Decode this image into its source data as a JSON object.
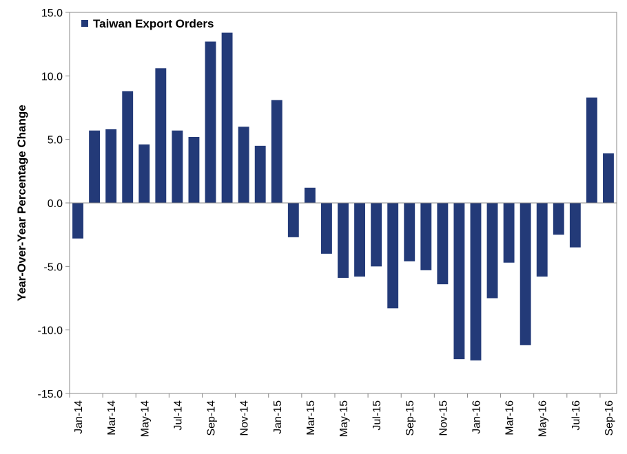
{
  "chart_data": {
    "type": "bar",
    "title": "",
    "xlabel": "",
    "ylabel": "Year-Over-Year Percentage Change",
    "ylim": [
      -15,
      15
    ],
    "yticks": [
      "15.0",
      "10.0",
      "5.0",
      "0.0",
      "-5.0",
      "-10.0",
      "-15.0"
    ],
    "ytick_values": [
      15,
      10,
      5,
      0,
      -5,
      -10,
      -15
    ],
    "grid": false,
    "legend_position": "top-left",
    "bar_color": "#233A78",
    "categories": [
      "Jan-14",
      "Feb-14",
      "Mar-14",
      "Apr-14",
      "May-14",
      "Jun-14",
      "Jul-14",
      "Aug-14",
      "Sep-14",
      "Oct-14",
      "Nov-14",
      "Dec-14",
      "Jan-15",
      "Feb-15",
      "Mar-15",
      "Apr-15",
      "May-15",
      "Jun-15",
      "Jul-15",
      "Aug-15",
      "Sep-15",
      "Oct-15",
      "Nov-15",
      "Dec-15",
      "Jan-16",
      "Feb-16",
      "Mar-16",
      "Apr-16",
      "May-16",
      "Jun-16",
      "Jul-16",
      "Aug-16",
      "Sep-16"
    ],
    "xtick_labels": [
      "Jan-14",
      "Mar-14",
      "May-14",
      "Jul-14",
      "Sep-14",
      "Nov-14",
      "Jan-15",
      "Mar-15",
      "May-15",
      "Jul-15",
      "Sep-15",
      "Nov-15",
      "Jan-16",
      "Mar-16",
      "May-16",
      "Jul-16",
      "Sep-16"
    ],
    "series": [
      {
        "name": "Taiwan Export Orders",
        "values": [
          -2.8,
          5.7,
          5.8,
          8.8,
          4.6,
          10.6,
          5.7,
          5.2,
          12.7,
          13.4,
          6.0,
          4.5,
          8.1,
          -2.7,
          1.2,
          -4.0,
          -5.9,
          -5.8,
          -5.0,
          -8.3,
          -4.6,
          -5.3,
          -6.4,
          -12.3,
          -12.4,
          -7.5,
          -4.7,
          -11.2,
          -5.8,
          -2.5,
          -3.5,
          8.3,
          3.9
        ]
      }
    ]
  }
}
